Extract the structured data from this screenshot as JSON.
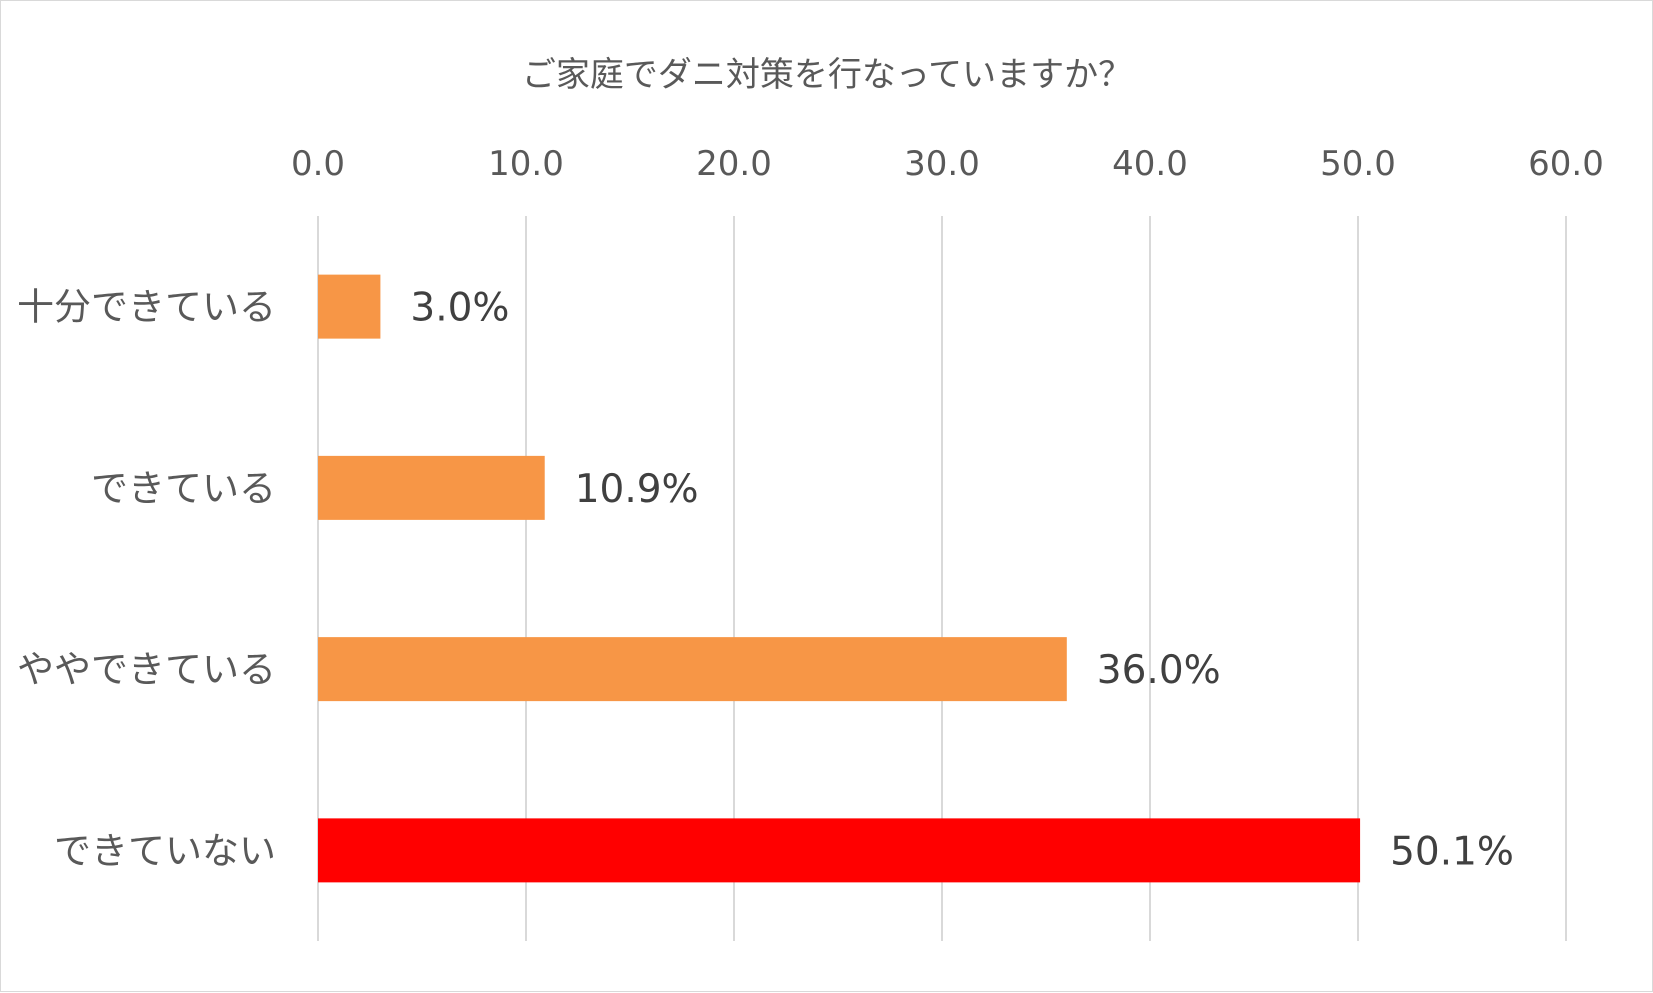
{
  "chart_data": {
    "type": "bar",
    "orientation": "horizontal",
    "title": "ご家庭でダニ対策を行なっていますか？",
    "categories": [
      "十分できている",
      "できている",
      "ややできている",
      "できていない"
    ],
    "values": [
      3.0,
      10.9,
      36.0,
      50.1
    ],
    "value_labels": [
      "3.0%",
      "10.9%",
      "36.0%",
      "50.1%"
    ],
    "bar_colors": [
      "#f79646",
      "#f79646",
      "#f79646",
      "#ff0000"
    ],
    "x_ticks": [
      "0.0",
      "10.0",
      "20.0",
      "30.0",
      "40.0",
      "50.0",
      "60.0"
    ],
    "xlim": [
      0,
      60
    ],
    "x_axis_position": "top",
    "grid": true,
    "legend": "none"
  }
}
